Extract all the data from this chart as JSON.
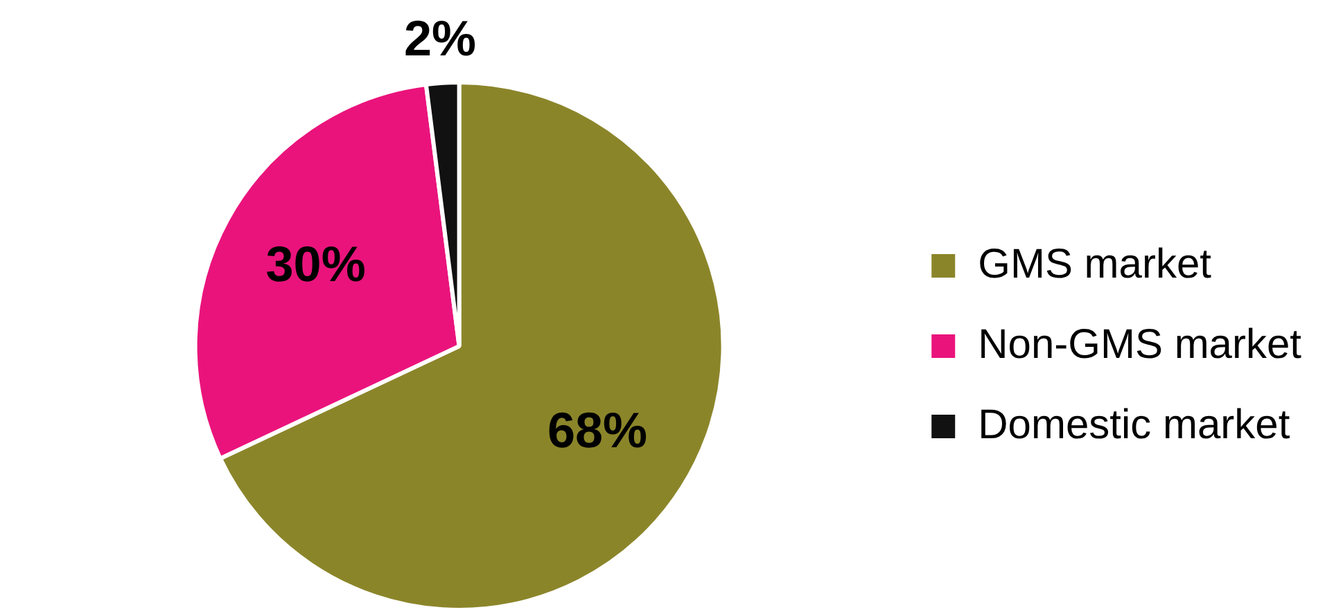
{
  "chart_data": {
    "type": "pie",
    "categories": [
      "GMS market",
      "Non-GMS market",
      "Domestic market"
    ],
    "values": [
      68,
      30,
      2
    ],
    "colors": [
      "#8b852a",
      "#ea137c",
      "#111111"
    ],
    "value_labels": [
      "68%",
      "30%",
      "2%"
    ],
    "legend": "right"
  }
}
